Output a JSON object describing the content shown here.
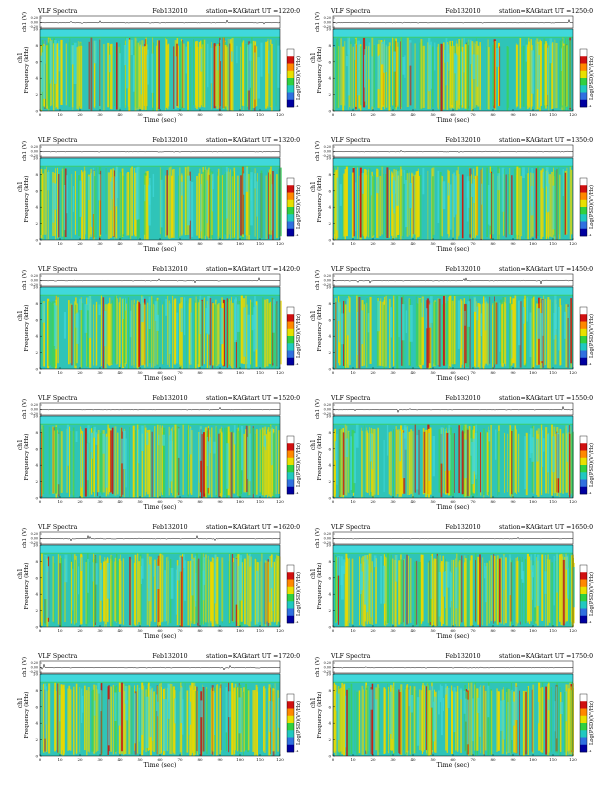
{
  "colors": {
    "spectrogram_bg": "#2fc4b8",
    "band_top": "#40d8dc",
    "yellow": "#e8d800",
    "red": "#c81c10",
    "green": "#3cd060",
    "cyan": "#40d8dc",
    "colorbar": [
      "#ffffff",
      "#d01010",
      "#ff8800",
      "#e8e000",
      "#30d040",
      "#20c8c0",
      "#3070e0",
      "#0000a0"
    ]
  },
  "chart_data": [
    {
      "type": "heatmap",
      "title_left": "VLF Spectra",
      "date": "Feb132010",
      "station": "station=KAG",
      "start": "start  UT =1220:0",
      "top_ylabel": "ch1 (V)",
      "top_yticks": [
        "0.20",
        "0.00",
        "-0.20"
      ],
      "ylabel_channel": "ch1",
      "ylabel": "Frequency  (kHz)",
      "xlabel": "Time  (sec)",
      "xticks": [
        "0",
        "10",
        "20",
        "30",
        "40",
        "50",
        "60",
        "70",
        "80",
        "90",
        "100",
        "110",
        "120"
      ],
      "yticks": [
        "0",
        "2",
        "4",
        "6",
        "8",
        "10"
      ],
      "xlim": [
        0,
        120
      ],
      "ylim": [
        0,
        10
      ],
      "colorbar_label": "Log(PSD)(V²/Hz)",
      "colorbar_min": "-4",
      "intensity": 0.55
    },
    {
      "type": "heatmap",
      "title_left": "VLF Spectra",
      "date": "Feb132010",
      "station": "station=KAG",
      "start": "start  UT =1250:0",
      "top_ylabel": "ch1 (V)",
      "top_yticks": [
        "0.20",
        "0.00",
        "-0.20"
      ],
      "ylabel_channel": "ch1",
      "ylabel": "Frequency  (kHz)",
      "xlabel": "Time  (sec)",
      "xticks": [
        "0",
        "10",
        "20",
        "30",
        "40",
        "50",
        "60",
        "70",
        "80",
        "90",
        "100",
        "110",
        "120"
      ],
      "yticks": [
        "0",
        "2",
        "4",
        "6",
        "8",
        "10"
      ],
      "xlim": [
        0,
        120
      ],
      "ylim": [
        0,
        10
      ],
      "colorbar_label": "Log(PSD)(V²/Hz)",
      "colorbar_min": "-4",
      "intensity": 0.5
    },
    {
      "type": "heatmap",
      "title_left": "VLF Spectra",
      "date": "Feb132010",
      "station": "station=KAG",
      "start": "start  UT =1320:0",
      "top_ylabel": "ch1 (V)",
      "top_yticks": [
        "0.20",
        "0.00",
        "-0.20"
      ],
      "ylabel_channel": "ch1",
      "ylabel": "Frequency  (kHz)",
      "xlabel": "Time  (sec)",
      "xticks": [
        "0",
        "10",
        "20",
        "30",
        "40",
        "50",
        "60",
        "70",
        "80",
        "90",
        "100",
        "110",
        "120"
      ],
      "yticks": [
        "0",
        "2",
        "4",
        "6",
        "8",
        "10"
      ],
      "xlim": [
        0,
        120
      ],
      "ylim": [
        0,
        10
      ],
      "colorbar_label": "Log(PSD)(V²/Hz)",
      "colorbar_min": "-4",
      "intensity": 0.55
    },
    {
      "type": "heatmap",
      "title_left": "VLF Spectra",
      "date": "Feb132010",
      "station": "station=KAG",
      "start": "start  UT =1350:0",
      "top_ylabel": "ch1 (V)",
      "top_yticks": [
        "0.20",
        "0.00",
        "-0.20"
      ],
      "ylabel_channel": "ch1",
      "ylabel": "Frequency  (kHz)",
      "xlabel": "Time  (sec)",
      "xticks": [
        "0",
        "10",
        "20",
        "30",
        "40",
        "50",
        "60",
        "70",
        "80",
        "90",
        "100",
        "110",
        "120"
      ],
      "yticks": [
        "0",
        "2",
        "4",
        "6",
        "8",
        "10"
      ],
      "xlim": [
        0,
        120
      ],
      "ylim": [
        0,
        10
      ],
      "colorbar_label": "Log(PSD)(V²/Hz)",
      "colorbar_min": "-4",
      "intensity": 0.6
    },
    {
      "type": "heatmap",
      "title_left": "VLF Spectra",
      "date": "Feb132010",
      "station": "station=KAG",
      "start": "start  UT =1420:0",
      "top_ylabel": "ch1 (V)",
      "top_yticks": [
        "0.20",
        "0.00",
        "-0.20"
      ],
      "ylabel_channel": "ch1",
      "ylabel": "Frequency  (kHz)",
      "xlabel": "Time  (sec)",
      "xticks": [
        "0",
        "10",
        "20",
        "30",
        "40",
        "50",
        "60",
        "70",
        "80",
        "90",
        "100",
        "110",
        "120"
      ],
      "yticks": [
        "0",
        "2",
        "4",
        "6",
        "8",
        "10"
      ],
      "xlim": [
        0,
        120
      ],
      "ylim": [
        0,
        10
      ],
      "colorbar_label": "Log(PSD)(V²/Hz)",
      "colorbar_min": "-4",
      "intensity": 0.5
    },
    {
      "type": "heatmap",
      "title_left": "VLF Spectra",
      "date": "Feb132010",
      "station": "station=KAG",
      "start": "start  UT =1450:0",
      "top_ylabel": "ch1 (V)",
      "top_yticks": [
        "0.20",
        "0.00",
        "-0.20"
      ],
      "ylabel_channel": "ch1",
      "ylabel": "Frequency  (kHz)",
      "xlabel": "Time  (sec)",
      "xticks": [
        "0",
        "10",
        "20",
        "30",
        "40",
        "50",
        "60",
        "70",
        "80",
        "90",
        "100",
        "110",
        "120"
      ],
      "yticks": [
        "0",
        "2",
        "4",
        "6",
        "8",
        "10"
      ],
      "xlim": [
        0,
        120
      ],
      "ylim": [
        0,
        10
      ],
      "colorbar_label": "Log(PSD)(V²/Hz)",
      "colorbar_min": "-4",
      "intensity": 0.5
    },
    {
      "type": "heatmap",
      "title_left": "VLF Spectra",
      "date": "Feb132010",
      "station": "station=KAG",
      "start": "start  UT =1520:0",
      "top_ylabel": "ch1 (V)",
      "top_yticks": [
        "0.20",
        "0.00",
        "-0.20"
      ],
      "ylabel_channel": "ch1",
      "ylabel": "Frequency  (kHz)",
      "xlabel": "Time  (sec)",
      "xticks": [
        "0",
        "10",
        "20",
        "30",
        "40",
        "50",
        "60",
        "70",
        "80",
        "90",
        "100",
        "110",
        "120"
      ],
      "yticks": [
        "0",
        "2",
        "4",
        "6",
        "8",
        "10"
      ],
      "xlim": [
        0,
        120
      ],
      "ylim": [
        0,
        10
      ],
      "colorbar_label": "Log(PSD)(V²/Hz)",
      "colorbar_min": "-4",
      "intensity": 0.75
    },
    {
      "type": "heatmap",
      "title_left": "VLF Spectra",
      "date": "Feb132010",
      "station": "station=KAG",
      "start": "start  UT =1550:0",
      "top_ylabel": "ch1 (V)",
      "top_yticks": [
        "0.20",
        "0.00",
        "-0.20"
      ],
      "ylabel_channel": "ch1",
      "ylabel": "Frequency  (kHz)",
      "xlabel": "Time  (sec)",
      "xticks": [
        "0",
        "10",
        "20",
        "30",
        "40",
        "50",
        "60",
        "70",
        "80",
        "90",
        "100",
        "110",
        "120"
      ],
      "yticks": [
        "0",
        "2",
        "4",
        "6",
        "8",
        "10"
      ],
      "xlim": [
        0,
        120
      ],
      "ylim": [
        0,
        10
      ],
      "colorbar_label": "Log(PSD)(V²/Hz)",
      "colorbar_min": "-4",
      "intensity": 0.75
    },
    {
      "type": "heatmap",
      "title_left": "VLF Spectra",
      "date": "Feb132010",
      "station": "station=KAG",
      "start": "start  UT =1620:0",
      "top_ylabel": "ch1 (V)",
      "top_yticks": [
        "0.20",
        "0.00",
        "-0.20"
      ],
      "ylabel_channel": "ch1",
      "ylabel": "Frequency  (kHz)",
      "xlabel": "Time  (sec)",
      "xticks": [
        "0",
        "10",
        "20",
        "30",
        "40",
        "50",
        "60",
        "70",
        "80",
        "90",
        "100",
        "110",
        "120"
      ],
      "yticks": [
        "0",
        "2",
        "4",
        "6",
        "8",
        "10"
      ],
      "xlim": [
        0,
        120
      ],
      "ylim": [
        0,
        10
      ],
      "colorbar_label": "Log(PSD)(V²/Hz)",
      "colorbar_min": "-4",
      "intensity": 0.6
    },
    {
      "type": "heatmap",
      "title_left": "VLF Spectra",
      "date": "Feb132010",
      "station": "station=KAG",
      "start": "start  UT =1650:0",
      "top_ylabel": "ch1 (V)",
      "top_yticks": [
        "0.20",
        "0.00",
        "-0.20"
      ],
      "ylabel_channel": "ch1",
      "ylabel": "Frequency  (kHz)",
      "xlabel": "Time  (sec)",
      "xticks": [
        "0",
        "10",
        "20",
        "30",
        "40",
        "50",
        "60",
        "70",
        "80",
        "90",
        "100",
        "110",
        "120"
      ],
      "yticks": [
        "0",
        "2",
        "4",
        "6",
        "8",
        "10"
      ],
      "xlim": [
        0,
        120
      ],
      "ylim": [
        0,
        10
      ],
      "colorbar_label": "Log(PSD)(V²/Hz)",
      "colorbar_min": "-4",
      "intensity": 0.6
    },
    {
      "type": "heatmap",
      "title_left": "VLF Spectra",
      "date": "Feb132010",
      "station": "station=KAG",
      "start": "start  UT =1720:0",
      "top_ylabel": "ch1 (V)",
      "top_yticks": [
        "0.20",
        "0.00",
        "-0.20"
      ],
      "ylabel_channel": "ch1",
      "ylabel": "Frequency  (kHz)",
      "xlabel": "Time  (sec)",
      "xticks": [
        "0",
        "10",
        "20",
        "30",
        "40",
        "50",
        "60",
        "70",
        "80",
        "90",
        "100",
        "110",
        "120"
      ],
      "yticks": [
        "0",
        "2",
        "4",
        "6",
        "8",
        "10"
      ],
      "xlim": [
        0,
        120
      ],
      "ylim": [
        0,
        10
      ],
      "colorbar_label": "Log(PSD)(V²/Hz)",
      "colorbar_min": "-4",
      "intensity": 0.45
    },
    {
      "type": "heatmap",
      "title_left": "VLF Spectra",
      "date": "Feb132010",
      "station": "station=KAG",
      "start": "start  UT =1750:0",
      "top_ylabel": "ch1 (V)",
      "top_yticks": [
        "0.20",
        "0.00",
        "-0.20"
      ],
      "ylabel_channel": "ch1",
      "ylabel": "Frequency  (kHz)",
      "xlabel": "Time  (sec)",
      "xticks": [
        "0",
        "10",
        "20",
        "30",
        "40",
        "50",
        "60",
        "70",
        "80",
        "90",
        "100",
        "110",
        "120"
      ],
      "yticks": [
        "0",
        "2",
        "4",
        "6",
        "8",
        "10"
      ],
      "xlim": [
        0,
        120
      ],
      "ylim": [
        0,
        10
      ],
      "colorbar_label": "Log(PSD)(V²/Hz)",
      "colorbar_min": "-4",
      "intensity": 0.5
    }
  ]
}
